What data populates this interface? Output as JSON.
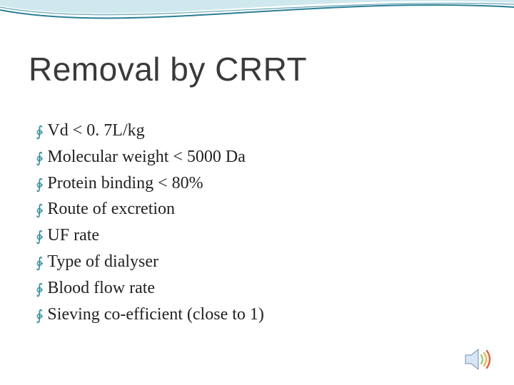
{
  "slide": {
    "title": "Removal by CRRT",
    "title_color": "#3a3a3a",
    "bullets": [
      "Vd < 0. 7L/kg",
      "Molecular weight < 5000 Da",
      "Protein binding < 80%",
      "Route of excretion",
      "UF rate",
      "Type of dialyser",
      "Blood flow rate",
      "Sieving co-efficient (close to 1)"
    ],
    "bullet_glyph": "∳",
    "bullet_glyph_color": "#2d8a9a",
    "bullet_text_color": "#222222",
    "background_color": "#ffffff"
  },
  "decor": {
    "swoosh_outer": "#2a7f96",
    "swoosh_inner": "#cfe8ee"
  },
  "audio_icon": {
    "name": "speaker-icon",
    "cone_fill": "#d6e6f5",
    "cone_stroke": "#6f8db0",
    "wave_colors": [
      "#9fd07a",
      "#f2b84b",
      "#d9634a"
    ]
  }
}
